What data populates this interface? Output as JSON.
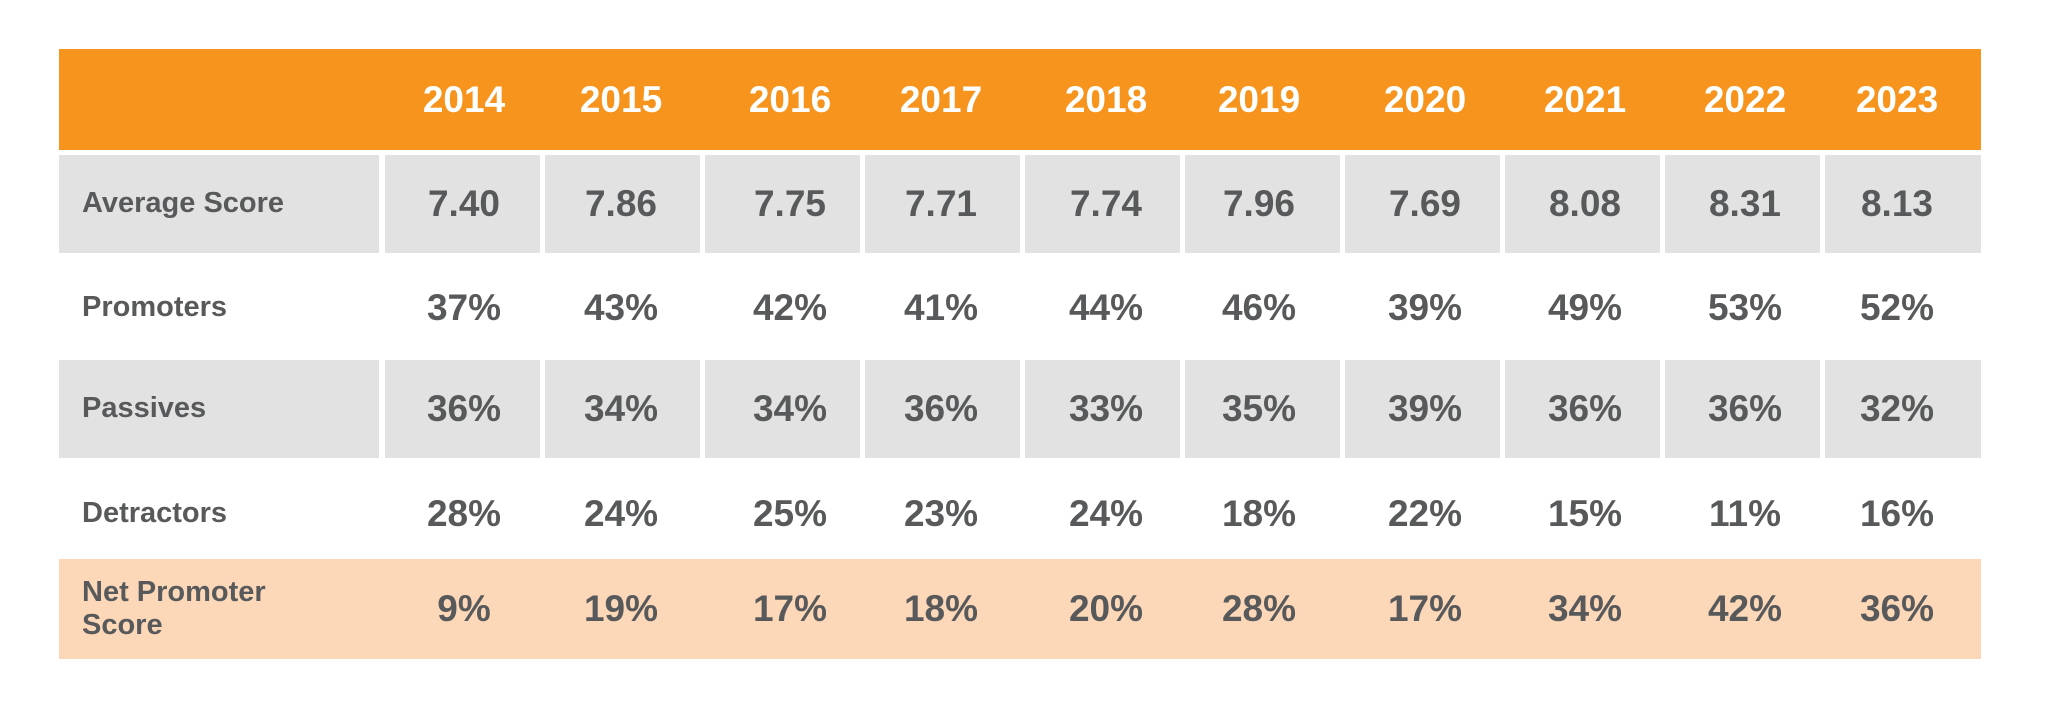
{
  "colors": {
    "header_bg": "#f7941d",
    "header_text": "#ffffff",
    "row_gray": "#e1e2e1",
    "row_highlight": "#fdd8b8",
    "body_text": "#58595b"
  },
  "chart_data": {
    "type": "table",
    "columns": [
      "2014",
      "2015",
      "2016",
      "2017",
      "2018",
      "2019",
      "2020",
      "2021",
      "2022",
      "2023"
    ],
    "rows": [
      {
        "label": "Average Score",
        "values": [
          "7.40",
          "7.86",
          "7.75",
          "7.71",
          "7.74",
          "7.96",
          "7.69",
          "8.08",
          "8.31",
          "8.13"
        ],
        "style": "gray"
      },
      {
        "label": "Promoters",
        "values": [
          "37%",
          "43%",
          "42%",
          "41%",
          "44%",
          "46%",
          "39%",
          "49%",
          "53%",
          "52%"
        ],
        "style": "white"
      },
      {
        "label": "Passives",
        "values": [
          "36%",
          "34%",
          "34%",
          "36%",
          "33%",
          "35%",
          "39%",
          "36%",
          "36%",
          "32%"
        ],
        "style": "gray"
      },
      {
        "label": "Detractors",
        "values": [
          "28%",
          "24%",
          "25%",
          "23%",
          "24%",
          "18%",
          "22%",
          "15%",
          "11%",
          "16%"
        ],
        "style": "white"
      },
      {
        "label": "Net Promoter Score",
        "values": [
          "9%",
          "19%",
          "17%",
          "18%",
          "20%",
          "28%",
          "17%",
          "34%",
          "42%",
          "36%"
        ],
        "style": "highlight"
      }
    ]
  }
}
